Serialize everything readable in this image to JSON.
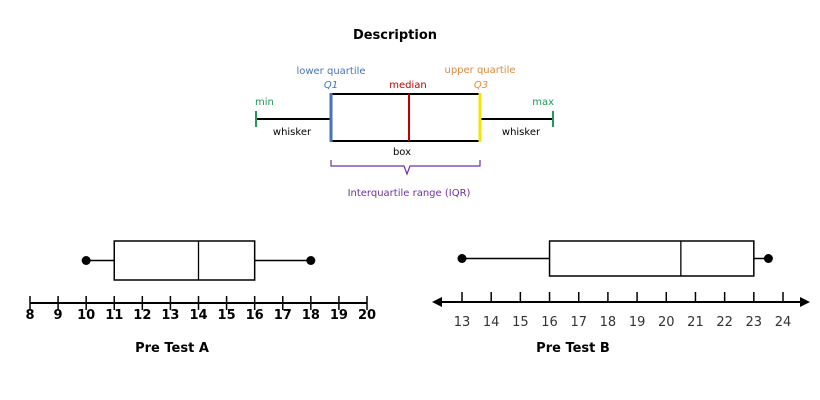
{
  "description": {
    "title": "Description",
    "labels": {
      "lower_quartile": "lower quartile",
      "q1": "Q1",
      "median": "median",
      "upper_quartile": "upper quartile",
      "q3": "Q3",
      "min": "min",
      "max": "max",
      "whisker_left": "whisker",
      "whisker_right": "whisker",
      "box": "box",
      "iqr": "Interquartile range (IQR)"
    },
    "colors": {
      "lower_quartile": "#4a72b8",
      "median": "#c00000",
      "upper_quartile": "#e08a3c",
      "q3_line": "#f2e600",
      "minmax": "#1f9a5a",
      "iqr": "#7030a0"
    }
  },
  "chart_data": [
    {
      "type": "boxplot",
      "title": "Pre Test A",
      "min": 10,
      "q1": 11,
      "median": 14,
      "q3": 16,
      "max": 18,
      "xlim": [
        8,
        20
      ],
      "ticks": [
        8,
        9,
        10,
        11,
        12,
        13,
        14,
        15,
        16,
        17,
        18,
        19,
        20
      ]
    },
    {
      "type": "boxplot",
      "title": "Pre Test B",
      "min": 13,
      "q1": 16,
      "median": 20.5,
      "q3": 23,
      "max": 23.5,
      "xlim": [
        13,
        24
      ],
      "ticks": [
        13,
        14,
        15,
        16,
        17,
        18,
        19,
        20,
        21,
        22,
        23,
        24
      ],
      "axis_arrows": true
    }
  ]
}
